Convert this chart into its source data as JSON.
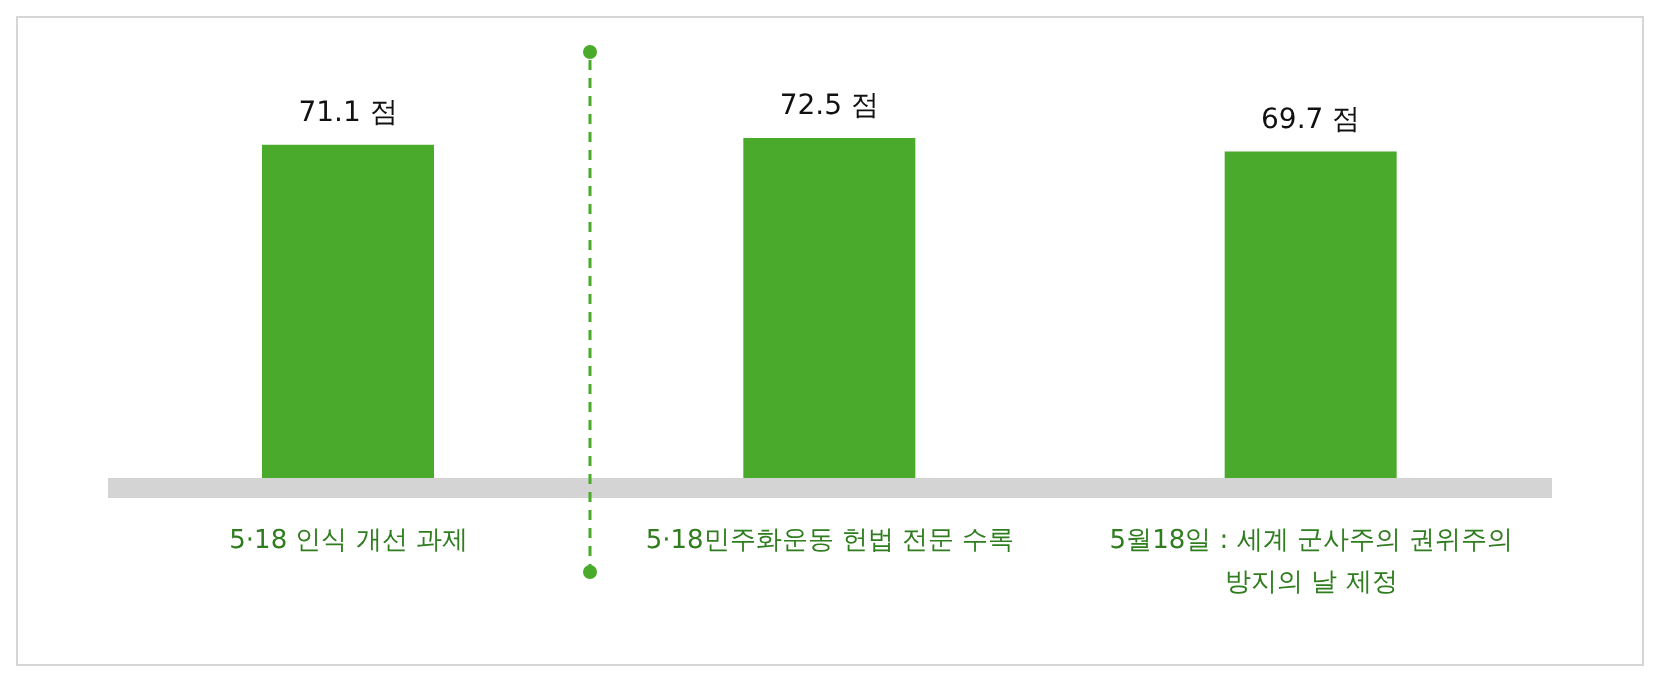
{
  "chart_data": {
    "type": "bar",
    "categories": [
      "5·18 인식 개선 과제",
      "5·18민주화운동 헌법 전문 수록",
      "5월18일 : 세계 군사주의 권위주의 방지의 날 제정"
    ],
    "values": [
      71.1,
      72.5,
      69.7
    ],
    "color": "#4aaa2c",
    "value_labels": [
      "71.1 점",
      "72.5 점",
      "69.7 점"
    ],
    "grid": false,
    "legend": false
  }
}
